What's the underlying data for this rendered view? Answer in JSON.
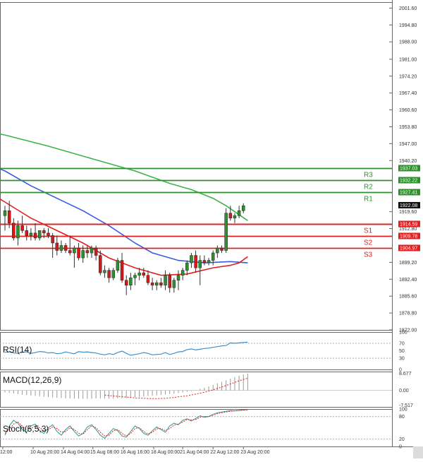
{
  "chart_data": [
    {
      "type": "candlestick",
      "panel": "price",
      "ylim": [
        1872.0,
        2004.0
      ],
      "y_ticks": [
        "2001.60",
        "1994.80",
        "1988.00",
        "1981.00",
        "1974.20",
        "1967.40",
        "1960.60",
        "1953.80",
        "1947.00",
        "1940.20",
        "1919.60",
        "1912.80",
        "1899.20",
        "1892.40",
        "1885.60",
        "1878.80",
        "1872.00"
      ],
      "current_price": "1922.08",
      "candles": [
        {
          "o": 1918.0,
          "h": 1922.0,
          "l": 1912.0,
          "c": 1920.0
        },
        {
          "o": 1920.0,
          "h": 1924.0,
          "l": 1913.0,
          "c": 1915.0
        },
        {
          "o": 1915.0,
          "h": 1917.0,
          "l": 1908.0,
          "c": 1909.0
        },
        {
          "o": 1909.0,
          "h": 1916.0,
          "l": 1906.0,
          "c": 1914.0
        },
        {
          "o": 1914.0,
          "h": 1918.0,
          "l": 1911.0,
          "c": 1912.0
        },
        {
          "o": 1912.0,
          "h": 1914.0,
          "l": 1908.0,
          "c": 1910.0
        },
        {
          "o": 1910.0,
          "h": 1913.0,
          "l": 1908.0,
          "c": 1911.0
        },
        {
          "o": 1911.0,
          "h": 1915.0,
          "l": 1908.0,
          "c": 1909.0
        },
        {
          "o": 1909.0,
          "h": 1912.0,
          "l": 1908.0,
          "c": 1912.0
        },
        {
          "o": 1912.0,
          "h": 1913.0,
          "l": 1909.0,
          "c": 1911.0
        },
        {
          "o": 1911.0,
          "h": 1913.0,
          "l": 1909.0,
          "c": 1910.0
        },
        {
          "o": 1910.0,
          "h": 1911.0,
          "l": 1901.0,
          "c": 1907.0
        },
        {
          "o": 1907.0,
          "h": 1910.0,
          "l": 1902.0,
          "c": 1904.0
        },
        {
          "o": 1904.0,
          "h": 1908.0,
          "l": 1903.0,
          "c": 1906.0
        },
        {
          "o": 1906.0,
          "h": 1907.0,
          "l": 1903.0,
          "c": 1904.0
        },
        {
          "o": 1904.0,
          "h": 1910.0,
          "l": 1902.0,
          "c": 1903.0
        },
        {
          "o": 1903.0,
          "h": 1906.0,
          "l": 1897.0,
          "c": 1905.0
        },
        {
          "o": 1905.0,
          "h": 1907.0,
          "l": 1900.0,
          "c": 1901.0
        },
        {
          "o": 1901.0,
          "h": 1906.0,
          "l": 1899.0,
          "c": 1904.0
        },
        {
          "o": 1904.0,
          "h": 1906.0,
          "l": 1901.0,
          "c": 1903.0
        },
        {
          "o": 1903.0,
          "h": 1906.0,
          "l": 1901.0,
          "c": 1905.0
        },
        {
          "o": 1905.0,
          "h": 1906.0,
          "l": 1900.0,
          "c": 1902.0
        },
        {
          "o": 1902.0,
          "h": 1904.0,
          "l": 1894.0,
          "c": 1895.0
        },
        {
          "o": 1895.0,
          "h": 1898.0,
          "l": 1893.0,
          "c": 1896.0
        },
        {
          "o": 1896.0,
          "h": 1897.0,
          "l": 1891.0,
          "c": 1893.0
        },
        {
          "o": 1893.0,
          "h": 1897.0,
          "l": 1892.0,
          "c": 1896.0
        },
        {
          "o": 1896.0,
          "h": 1901.0,
          "l": 1895.0,
          "c": 1900.0
        },
        {
          "o": 1900.0,
          "h": 1903.0,
          "l": 1891.0,
          "c": 1892.0
        },
        {
          "o": 1892.0,
          "h": 1894.0,
          "l": 1886.0,
          "c": 1890.0
        },
        {
          "o": 1890.0,
          "h": 1895.0,
          "l": 1888.0,
          "c": 1893.0
        },
        {
          "o": 1893.0,
          "h": 1895.0,
          "l": 1890.0,
          "c": 1894.0
        },
        {
          "o": 1894.0,
          "h": 1897.0,
          "l": 1892.0,
          "c": 1895.0
        },
        {
          "o": 1895.0,
          "h": 1897.0,
          "l": 1893.0,
          "c": 1894.0
        },
        {
          "o": 1894.0,
          "h": 1896.0,
          "l": 1890.0,
          "c": 1891.0
        },
        {
          "o": 1891.0,
          "h": 1893.0,
          "l": 1888.0,
          "c": 1890.0
        },
        {
          "o": 1890.0,
          "h": 1892.0,
          "l": 1888.0,
          "c": 1891.0
        },
        {
          "o": 1891.0,
          "h": 1893.0,
          "l": 1889.0,
          "c": 1890.0
        },
        {
          "o": 1890.0,
          "h": 1896.0,
          "l": 1888.0,
          "c": 1894.0
        },
        {
          "o": 1894.0,
          "h": 1895.0,
          "l": 1887.0,
          "c": 1889.0
        },
        {
          "o": 1889.0,
          "h": 1893.0,
          "l": 1887.0,
          "c": 1892.0
        },
        {
          "o": 1892.0,
          "h": 1896.0,
          "l": 1888.0,
          "c": 1894.0
        },
        {
          "o": 1894.0,
          "h": 1897.0,
          "l": 1892.0,
          "c": 1896.0
        },
        {
          "o": 1896.0,
          "h": 1900.0,
          "l": 1894.0,
          "c": 1899.0
        },
        {
          "o": 1899.0,
          "h": 1903.0,
          "l": 1897.0,
          "c": 1902.0
        },
        {
          "o": 1902.0,
          "h": 1904.0,
          "l": 1895.0,
          "c": 1897.0
        },
        {
          "o": 1897.0,
          "h": 1902.0,
          "l": 1890.0,
          "c": 1900.0
        },
        {
          "o": 1900.0,
          "h": 1902.0,
          "l": 1898.0,
          "c": 1899.0
        },
        {
          "o": 1899.0,
          "h": 1901.0,
          "l": 1898.0,
          "c": 1900.0
        },
        {
          "o": 1900.0,
          "h": 1904.0,
          "l": 1898.0,
          "c": 1903.0
        },
        {
          "o": 1903.0,
          "h": 1906.0,
          "l": 1901.0,
          "c": 1905.0
        },
        {
          "o": 1905.0,
          "h": 1906.0,
          "l": 1903.0,
          "c": 1904.0
        },
        {
          "o": 1904.0,
          "h": 1921.0,
          "l": 1903.0,
          "c": 1919.0
        },
        {
          "o": 1919.0,
          "h": 1922.0,
          "l": 1916.0,
          "c": 1917.0
        },
        {
          "o": 1917.0,
          "h": 1919.0,
          "l": 1915.0,
          "c": 1918.0
        },
        {
          "o": 1918.0,
          "h": 1922.0,
          "l": 1917.0,
          "c": 1920.0
        },
        {
          "o": 1920.0,
          "h": 1923.0,
          "l": 1919.0,
          "c": 1922.0
        }
      ],
      "moving_averages": [
        {
          "color": "#3cb44b",
          "points": [
            [
              -10,
              1954.0
            ],
            [
              0,
              1950.5
            ],
            [
              10,
              1946.0
            ],
            [
              20,
              1941.0
            ],
            [
              30,
              1936.0
            ],
            [
              38,
              1931.0
            ],
            [
              43,
              1928.5
            ],
            [
              48,
              1925.0
            ],
            [
              51,
              1922.0
            ],
            [
              56,
              1916.0
            ]
          ]
        },
        {
          "color": "#3a5bdc",
          "points": [
            [
              -10,
              1943.0
            ],
            [
              0,
              1936.0
            ],
            [
              6,
              1930.0
            ],
            [
              12,
              1925.0
            ],
            [
              18,
              1920.0
            ],
            [
              24,
              1914.0
            ],
            [
              30,
              1907.0
            ],
            [
              34,
              1903.0
            ],
            [
              40,
              1900.0
            ],
            [
              46,
              1899.0
            ],
            [
              52,
              1899.5
            ],
            [
              56,
              1899.0
            ]
          ]
        },
        {
          "color": "#e02020",
          "points": [
            [
              -10,
              1934.0
            ],
            [
              0,
              1923.5
            ],
            [
              6,
              1917.0
            ],
            [
              12,
              1912.0
            ],
            [
              18,
              1907.0
            ],
            [
              24,
              1901.0
            ],
            [
              30,
              1897.0
            ],
            [
              36,
              1894.0
            ],
            [
              42,
              1894.5
            ],
            [
              48,
              1897.0
            ],
            [
              52,
              1898.0
            ],
            [
              54,
              1899.0
            ],
            [
              56,
              1901.5
            ]
          ]
        }
      ],
      "levels": [
        {
          "label": "R3",
          "value": 1937.03,
          "price_tag": "1937.03",
          "color": "#2f8f2f"
        },
        {
          "label": "R2",
          "value": 1932.22,
          "price_tag": "1932.22",
          "color": "#2f8f2f"
        },
        {
          "label": "R1",
          "value": 1927.41,
          "price_tag": "1927.41",
          "color": "#2f8f2f"
        },
        {
          "label": "",
          "value": 1914.59,
          "price_tag": "1914.59",
          "color": "#e02020"
        },
        {
          "label": "S1",
          "value": 1914.59,
          "price_tag": "",
          "color": "#e02020"
        },
        {
          "label": "S2",
          "value": 1909.78,
          "price_tag": "1909.78",
          "color": "#e02020"
        },
        {
          "label": "S3",
          "value": 1904.97,
          "price_tag": "1904.97",
          "color": "#e02020"
        }
      ]
    },
    {
      "type": "line",
      "panel": "rsi",
      "label": "RSI(14)",
      "ylim": [
        0,
        100
      ],
      "y_ticks": [
        "100",
        "70",
        "50",
        "30",
        "0"
      ],
      "values": [
        46,
        47,
        44,
        43,
        46,
        47,
        43,
        45,
        48,
        47,
        44,
        45,
        42,
        43,
        47,
        44,
        42,
        48,
        46,
        47,
        45,
        44,
        41,
        39,
        42,
        40,
        45,
        49,
        43,
        38,
        40,
        42,
        45,
        43,
        39,
        40,
        41,
        45,
        40,
        43,
        47,
        48,
        53,
        55,
        52,
        54,
        56,
        57,
        59,
        61,
        63,
        64,
        71,
        70,
        71,
        72,
        73
      ],
      "color": "#3a8fd0"
    },
    {
      "type": "bar",
      "panel": "macd",
      "label": "MACD(12,26,9)",
      "ylim": [
        -8.4,
        9.6
      ],
      "y_ticks": [
        "8.677",
        "0.00",
        "-7.517"
      ],
      "histogram": [
        -1,
        -1.2,
        -1.5,
        -1.9,
        -2.2,
        -2.4,
        -2.6,
        -2.8,
        -3.0,
        -3.2,
        -3.4,
        -3.6,
        -3.8,
        -3.9,
        -4.0,
        -4.1,
        -4.2,
        -4.2,
        -4.3,
        -4.3,
        -4.2,
        -4.1,
        -4.1,
        -4.2,
        -4.3,
        -4.2,
        -4.1,
        -4.0,
        -3.9,
        -3.7,
        -3.5,
        -3.3,
        -3.1,
        -2.9,
        -2.7,
        -2.5,
        -2.3,
        -2.1,
        -1.9,
        -1.6,
        -1.3,
        -1.0,
        -0.7,
        -0.3,
        0.2,
        0.8,
        1.3,
        2.0,
        2.8,
        3.6,
        4.4,
        5.2,
        6.0,
        6.8,
        7.5,
        8.2,
        8.6
      ],
      "signal": [
        -2.4,
        -2.6,
        -2.8,
        -3.0,
        -3.2,
        -3.4,
        -3.6,
        -3.8,
        -3.9,
        -4.0,
        -4.1,
        -4.2,
        -4.2,
        -4.1,
        -4.0,
        -3.8,
        -3.6,
        -3.3,
        -3.0,
        -2.7,
        -2.3,
        -1.9,
        -1.4,
        -0.9,
        -0.3,
        0.3,
        1.0,
        1.7,
        2.5,
        3.3,
        4.1,
        4.9,
        5.6,
        6.2
      ],
      "color": "#9a9a9a",
      "signal_color": "#e02020"
    },
    {
      "type": "line",
      "panel": "stoch",
      "label": "Stoch(5,5,3)",
      "ylim": [
        0,
        100
      ],
      "y_ticks": [
        "100",
        "80",
        "20",
        "0"
      ],
      "series": [
        {
          "color": "#2a9d8f",
          "values": [
            30,
            55,
            70,
            62,
            45,
            38,
            55,
            60,
            42,
            35,
            50,
            58,
            40,
            30,
            45,
            55,
            40,
            28,
            35,
            52,
            58,
            45,
            30,
            22,
            35,
            48,
            42,
            28,
            25,
            40,
            55,
            48,
            35,
            30,
            42,
            52,
            45,
            38,
            55,
            62,
            58,
            70,
            74,
            68,
            75,
            82,
            78,
            80,
            86,
            90,
            92,
            94,
            96,
            95,
            96,
            98,
            98
          ]
        },
        {
          "color": "#e02020",
          "values": [
            35,
            45,
            60,
            65,
            55,
            45,
            48,
            55,
            50,
            42,
            45,
            52,
            48,
            38,
            40,
            50,
            45,
            35,
            33,
            45,
            55,
            50,
            38,
            28,
            30,
            42,
            45,
            35,
            28,
            35,
            48,
            50,
            40,
            33,
            38,
            47,
            48,
            42,
            48,
            57,
            60,
            65,
            72,
            71,
            72,
            78,
            80,
            80,
            83,
            88,
            90,
            92,
            94,
            95,
            96,
            97,
            98
          ]
        }
      ]
    }
  ],
  "x_axis": {
    "labels": [
      "12:00",
      "10 Aug 20:00",
      "14 Aug 04:00",
      "15 Aug 08:00",
      "16 Aug 16:00",
      "18 Aug 00:00",
      "21 Aug 04:00",
      "22 Aug 12:00",
      "23 Aug 20:00"
    ],
    "positions": [
      -0.5,
      6.5,
      13.5,
      20.3,
      27.3,
      34.3,
      41.0,
      48.0,
      55.0
    ]
  },
  "colors": {
    "bull": "#2f8f2f",
    "bear": "#d11a1a",
    "grid": "#b0b0b0",
    "frame": "#666666",
    "tag_red": "#e02020",
    "tag_green": "#2f8f2f",
    "tag_black": "#111111"
  }
}
